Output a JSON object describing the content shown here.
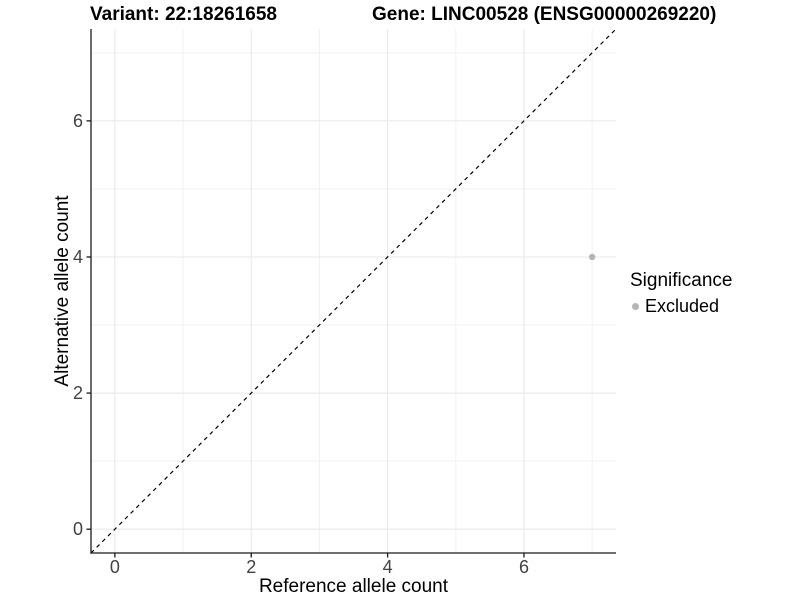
{
  "chart_data": {
    "type": "scatter",
    "title_left": "Variant: 22:18261658",
    "title_right": "Gene: LINC00528 (ENSG00000269220)",
    "xlabel": "Reference allele count",
    "ylabel": "Alternative allele count",
    "xlim": [
      -0.35,
      7.35
    ],
    "ylim": [
      -0.35,
      7.35
    ],
    "x_ticks": [
      0,
      2,
      4,
      6
    ],
    "y_ticks": [
      0,
      2,
      4,
      6
    ],
    "x_minor_ticks": [
      1,
      3,
      5,
      7
    ],
    "y_minor_ticks": [
      1,
      3,
      5,
      7
    ],
    "grid": true,
    "series": [
      {
        "name": "Excluded",
        "color": "#b5b5b5",
        "points": [
          {
            "x": 7,
            "y": 4
          }
        ]
      }
    ],
    "reference_line": {
      "type": "identity",
      "style": "dashed",
      "color": "#000000"
    },
    "legend": {
      "title": "Significance",
      "position": "right",
      "items": [
        {
          "label": "Excluded",
          "color": "#b5b5b5"
        }
      ]
    },
    "colors": {
      "grid_major": "#e8e8e8",
      "grid_minor": "#f1f1f1",
      "axis_line": "#1a1a1a",
      "tick_label": "#424242",
      "panel_background": "#ffffff"
    }
  }
}
